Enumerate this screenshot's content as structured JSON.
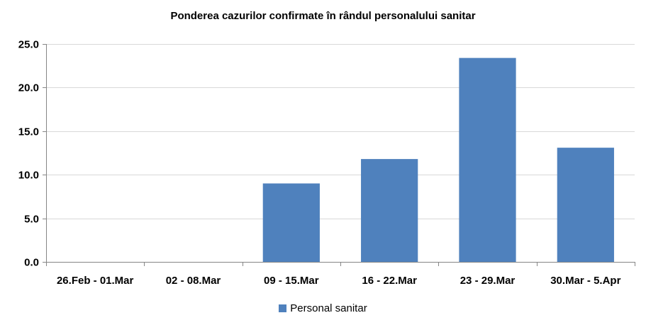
{
  "chart_data": {
    "type": "bar",
    "title": "Ponderea cazurilor confirmate în rândul personalului sanitar",
    "categories": [
      "26.Feb - 01.Mar",
      "02 - 08.Mar",
      "09 - 15.Mar",
      "16 - 22.Mar",
      "23 - 29.Mar",
      "30.Mar - 5.Apr"
    ],
    "series": [
      {
        "name": "Personal sanitar",
        "values": [
          0,
          0,
          9.0,
          11.8,
          23.4,
          13.1
        ],
        "color": "#4F81BD"
      }
    ],
    "ylim": [
      0,
      25
    ],
    "yticks": [
      "0.0",
      "5.0",
      "10.0",
      "15.0",
      "20.0",
      "25.0"
    ],
    "grid": true,
    "legend_position": "bottom"
  }
}
